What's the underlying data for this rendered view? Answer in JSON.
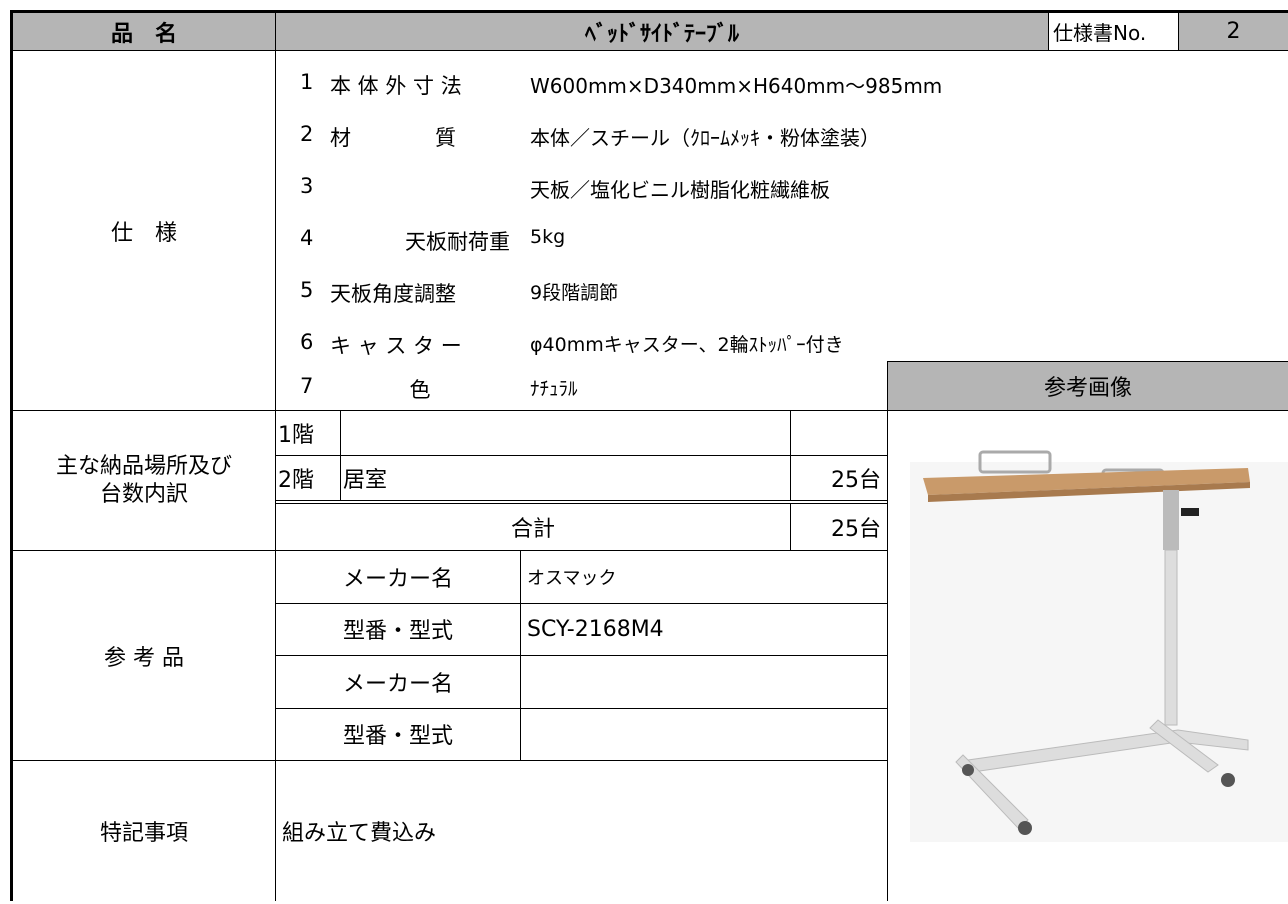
{
  "header": {
    "item_label": "品　名",
    "item_name": "ﾍﾞｯﾄﾞｻｲﾄﾞﾃｰﾌﾞﾙ",
    "spec_no_label": "仕様書No.",
    "spec_no": "2"
  },
  "spec": {
    "label": "仕　様",
    "rows": [
      {
        "no": "1",
        "label": "本 体 外 寸 法",
        "value": "W600mm×D340mm×H640mm〜985mm"
      },
      {
        "no": "2",
        "label": "材　　　　質",
        "value": "本体／スチール（ｸﾛｰﾑﾒｯｷ・粉体塗装）"
      },
      {
        "no": "3",
        "value": "天板／塩化ビニル樹脂化粧繊維板"
      },
      {
        "no": "4",
        "label": "天板耐荷重",
        "value": "5kg"
      },
      {
        "no": "5",
        "label": "天板角度調整",
        "value": "9段階調節"
      },
      {
        "no": "6",
        "label": "キ ャ ス タ ー",
        "value": "φ40mmキャスター、2輪ｽﾄｯﾊﾟｰ付き"
      },
      {
        "no": "7",
        "label": "色",
        "value": "ﾅﾁｭﾗﾙ"
      }
    ]
  },
  "reference_image_label": "参考画像",
  "delivery": {
    "label": "主な納品場所及び台数内訳",
    "rows": [
      {
        "floor": "1階"
      },
      {
        "floor": "2階",
        "place": "居室",
        "count": "25台"
      }
    ],
    "total_label": "合計",
    "total_count": "25台"
  },
  "reference": {
    "label": "参 考 品",
    "rows": [
      {
        "label": "メーカー名",
        "value": "オスマック"
      },
      {
        "label": "型番・型式",
        "value": "SCY-2168M4"
      },
      {
        "label": "メーカー名"
      },
      {
        "label": "型番・型式"
      }
    ]
  },
  "notes": {
    "label": "特記事項",
    "value": "組み立て費込み"
  }
}
